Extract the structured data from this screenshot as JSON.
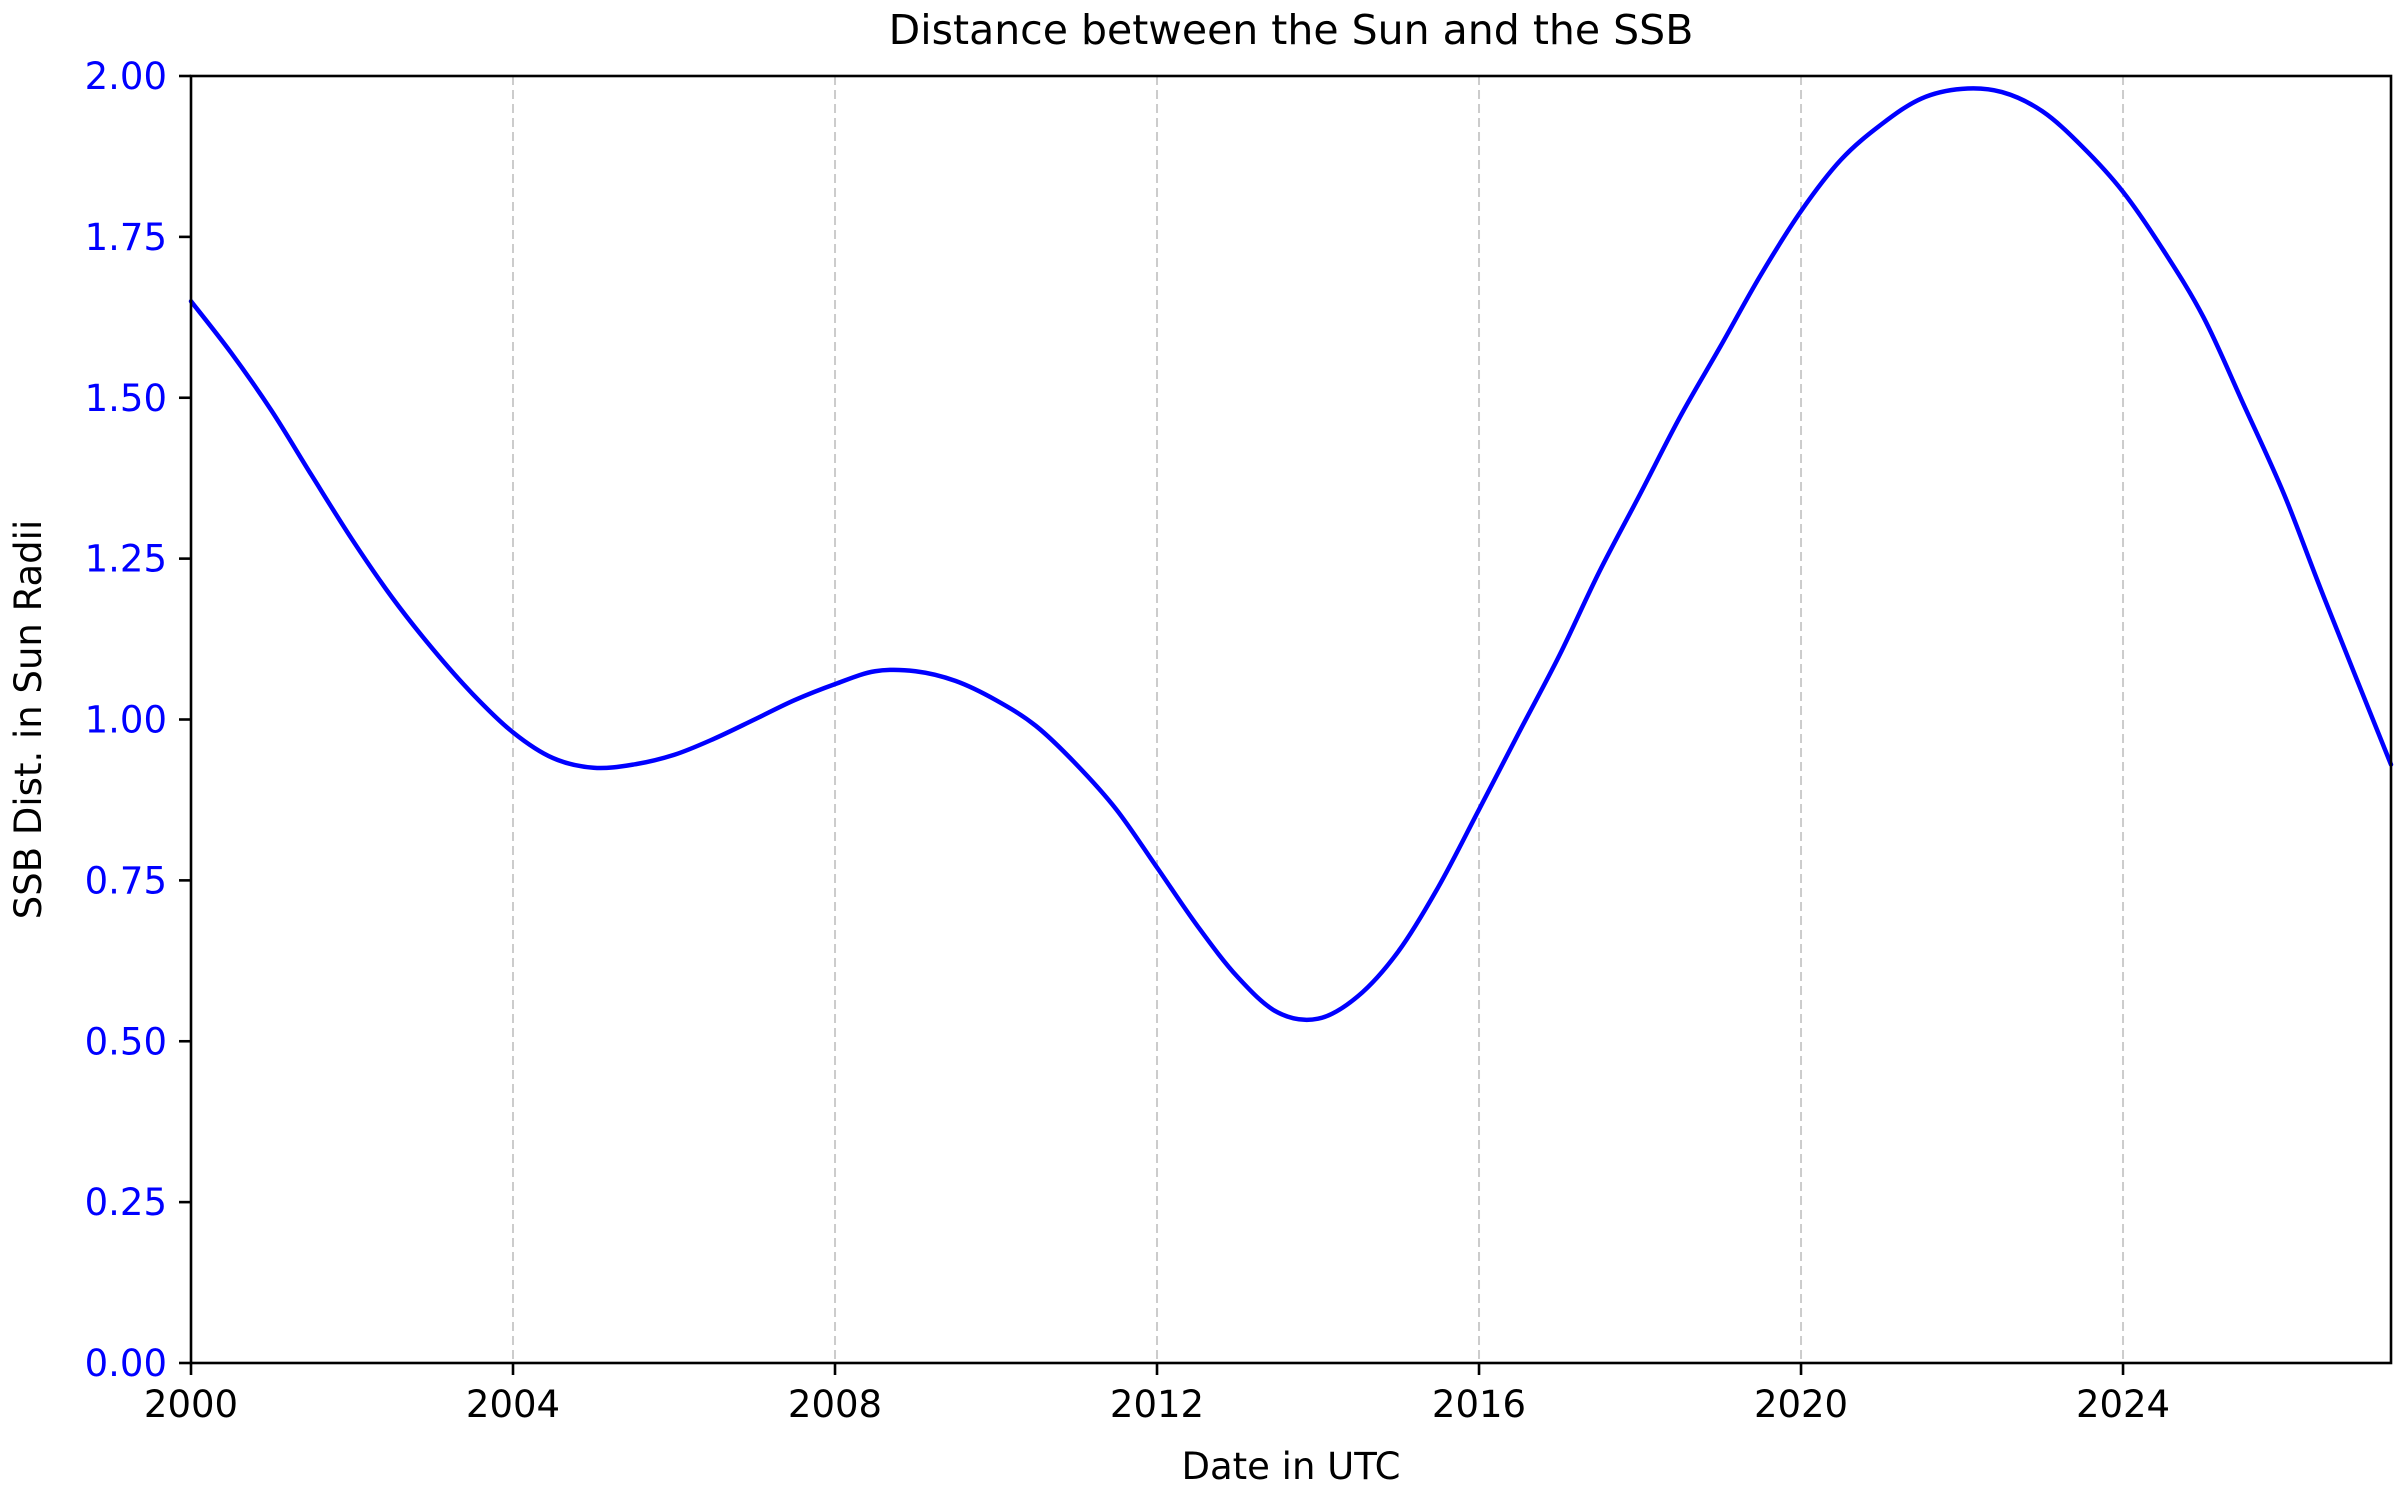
{
  "chart_data": {
    "type": "line",
    "title": "Distance between the Sun and the SSB",
    "xlabel": "Date in UTC",
    "ylabel": "SSB Dist. in Sun Radii",
    "x_ticks": [
      "2000",
      "2004",
      "2008",
      "2012",
      "2016",
      "2020",
      "2024"
    ],
    "y_ticks": [
      "0.00",
      "0.25",
      "0.50",
      "0.75",
      "1.00",
      "1.25",
      "1.50",
      "1.75",
      "2.00"
    ],
    "xlim": [
      "2000-01-01",
      "2027-05-01"
    ],
    "ylim": [
      0,
      2
    ],
    "grid": "vertical dashed lines at x ticks",
    "series": [
      {
        "color": "#0000ff",
        "points": [
          [
            "2000-01-01",
            1.65
          ],
          [
            "2000-07-01",
            1.57
          ],
          [
            "2001-01-01",
            1.48
          ],
          [
            "2001-07-01",
            1.38
          ],
          [
            "2002-01-01",
            1.28
          ],
          [
            "2002-07-01",
            1.19
          ],
          [
            "2003-01-01",
            1.11
          ],
          [
            "2003-07-01",
            1.04
          ],
          [
            "2004-01-01",
            0.98
          ],
          [
            "2004-07-01",
            0.94
          ],
          [
            "2005-01-01",
            0.925
          ],
          [
            "2005-07-01",
            0.93
          ],
          [
            "2006-01-01",
            0.945
          ],
          [
            "2006-07-01",
            0.97
          ],
          [
            "2007-01-01",
            1.0
          ],
          [
            "2007-07-01",
            1.03
          ],
          [
            "2008-01-01",
            1.055
          ],
          [
            "2008-07-01",
            1.075
          ],
          [
            "2009-01-01",
            1.075
          ],
          [
            "2009-07-01",
            1.06
          ],
          [
            "2010-01-01",
            1.03
          ],
          [
            "2010-07-01",
            0.99
          ],
          [
            "2011-01-01",
            0.93
          ],
          [
            "2011-07-01",
            0.86
          ],
          [
            "2012-01-01",
            0.77
          ],
          [
            "2012-07-01",
            0.68
          ],
          [
            "2013-01-01",
            0.6
          ],
          [
            "2013-07-01",
            0.545
          ],
          [
            "2014-01-01",
            0.535
          ],
          [
            "2014-07-01",
            0.57
          ],
          [
            "2015-01-01",
            0.64
          ],
          [
            "2015-07-01",
            0.74
          ],
          [
            "2016-01-01",
            0.86
          ],
          [
            "2016-07-01",
            0.98
          ],
          [
            "2017-01-01",
            1.1
          ],
          [
            "2017-07-01",
            1.23
          ],
          [
            "2018-01-01",
            1.35
          ],
          [
            "2018-07-01",
            1.47
          ],
          [
            "2019-01-01",
            1.58
          ],
          [
            "2019-07-01",
            1.69
          ],
          [
            "2020-01-01",
            1.79
          ],
          [
            "2020-07-01",
            1.87
          ],
          [
            "2021-01-01",
            1.925
          ],
          [
            "2021-07-01",
            1.965
          ],
          [
            "2022-01-01",
            1.98
          ],
          [
            "2022-07-01",
            1.975
          ],
          [
            "2023-01-01",
            1.945
          ],
          [
            "2023-07-01",
            1.89
          ],
          [
            "2024-01-01",
            1.82
          ],
          [
            "2024-07-01",
            1.73
          ],
          [
            "2025-01-01",
            1.625
          ],
          [
            "2025-07-01",
            1.49
          ],
          [
            "2026-01-01",
            1.35
          ],
          [
            "2026-07-01",
            1.19
          ],
          [
            "2027-05-01",
            0.93
          ]
        ]
      }
    ]
  }
}
